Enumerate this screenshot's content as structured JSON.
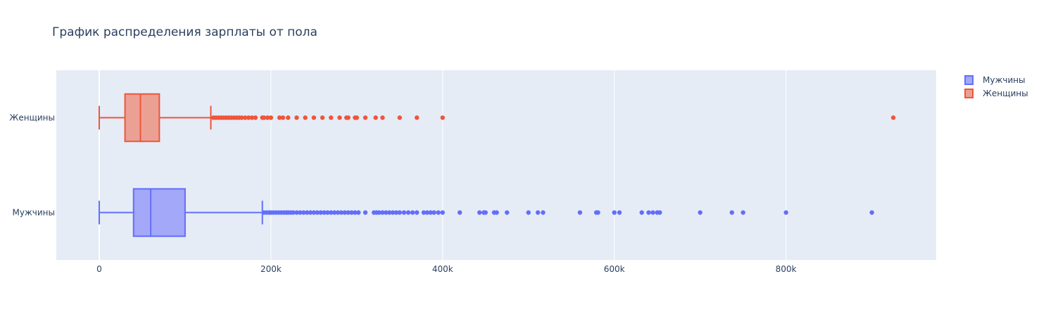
{
  "chart_data": {
    "type": "box",
    "orientation": "horizontal",
    "title": "График распределения зарплаты от пола",
    "xlabel": "",
    "ylabel": "",
    "xlim": [
      -50000,
      975000
    ],
    "x_ticks": [
      0,
      200000,
      400000,
      600000,
      800000
    ],
    "x_tick_labels": [
      "0",
      "200k",
      "400k",
      "600k",
      "800k"
    ],
    "categories": [
      "Мужчины",
      "Женщины"
    ],
    "grid": true,
    "legend_position": "top-right",
    "series": [
      {
        "name": "Мужчины",
        "color": "#636efa",
        "fill": "#a3a8f8",
        "min": 0,
        "q1": 40000,
        "median": 60000,
        "q3": 100000,
        "upper_fence": 190000,
        "outliers": [
          192000,
          195000,
          198000,
          200000,
          203000,
          206000,
          209000,
          212000,
          215000,
          218000,
          220000,
          223000,
          226000,
          230000,
          234000,
          238000,
          242000,
          246000,
          250000,
          254000,
          258000,
          262000,
          266000,
          270000,
          274000,
          278000,
          282000,
          286000,
          290000,
          294000,
          298000,
          302000,
          310000,
          320000,
          323000,
          326000,
          330000,
          334000,
          338000,
          342000,
          346000,
          350000,
          355000,
          360000,
          365000,
          370000,
          378000,
          382000,
          386000,
          390000,
          395000,
          400000,
          420000,
          443000,
          448000,
          450000,
          460000,
          463000,
          475000,
          500000,
          511000,
          517000,
          560000,
          579000,
          581000,
          600000,
          606000,
          632000,
          640000,
          645000,
          650000,
          653000,
          700000,
          737000,
          750000,
          800000,
          900000
        ]
      },
      {
        "name": "Женщины",
        "color": "#ef553b",
        "fill": "#eaa193",
        "min": 0,
        "q1": 30000,
        "median": 48000,
        "q3": 70000,
        "upper_fence": 130000,
        "outliers": [
          133000,
          136000,
          139000,
          142000,
          145000,
          148000,
          151000,
          154000,
          157000,
          160000,
          163000,
          166000,
          170000,
          174000,
          178000,
          182000,
          190000,
          192000,
          196000,
          200000,
          210000,
          214000,
          220000,
          230000,
          240000,
          250000,
          260000,
          270000,
          280000,
          288000,
          290000,
          298000,
          300000,
          310000,
          322000,
          330000,
          350000,
          370000,
          400000,
          925000
        ]
      }
    ]
  }
}
